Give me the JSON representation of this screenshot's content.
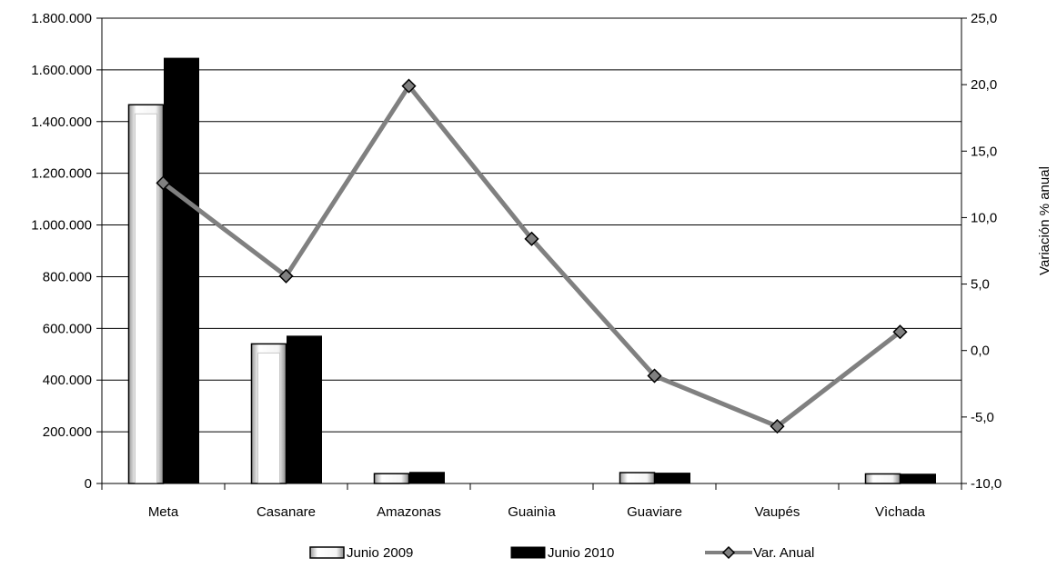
{
  "chart_data": {
    "type": "bar",
    "categories": [
      "Meta",
      "Casanare",
      "Amazonas",
      "Guainìa",
      "Guaviare",
      "Vaupés",
      "Vìchada"
    ],
    "series": [
      {
        "name": "Junio 2009",
        "type": "bar",
        "values": [
          1465000,
          540000,
          38000,
          0,
          42000,
          0,
          37000
        ],
        "color": "#ffffff"
      },
      {
        "name": "Junio 2010",
        "type": "bar",
        "values": [
          1645000,
          570000,
          43000,
          0,
          40000,
          0,
          36000
        ],
        "color": "#000000"
      },
      {
        "name": "Var. Anual",
        "type": "line",
        "axis": "right",
        "values": [
          12.6,
          5.6,
          19.9,
          8.4,
          -1.9,
          -5.7,
          1.4
        ],
        "color": "#808080"
      }
    ],
    "y_left": {
      "ylim": [
        0,
        1800000
      ],
      "ticks": [
        "0",
        "200.000",
        "400.000",
        "600.000",
        "800.000",
        "1.000.000",
        "1.200.000",
        "1.400.000",
        "1.600.000",
        "1.800.000"
      ]
    },
    "y_right": {
      "label": "Variación % anual",
      "ylim": [
        -10,
        25
      ],
      "ticks": [
        "-10,0",
        "-5,0",
        "0,0",
        "5,0",
        "10,0",
        "15,0",
        "20,0",
        "25,0"
      ]
    },
    "grid": true,
    "legend": "bottom"
  }
}
